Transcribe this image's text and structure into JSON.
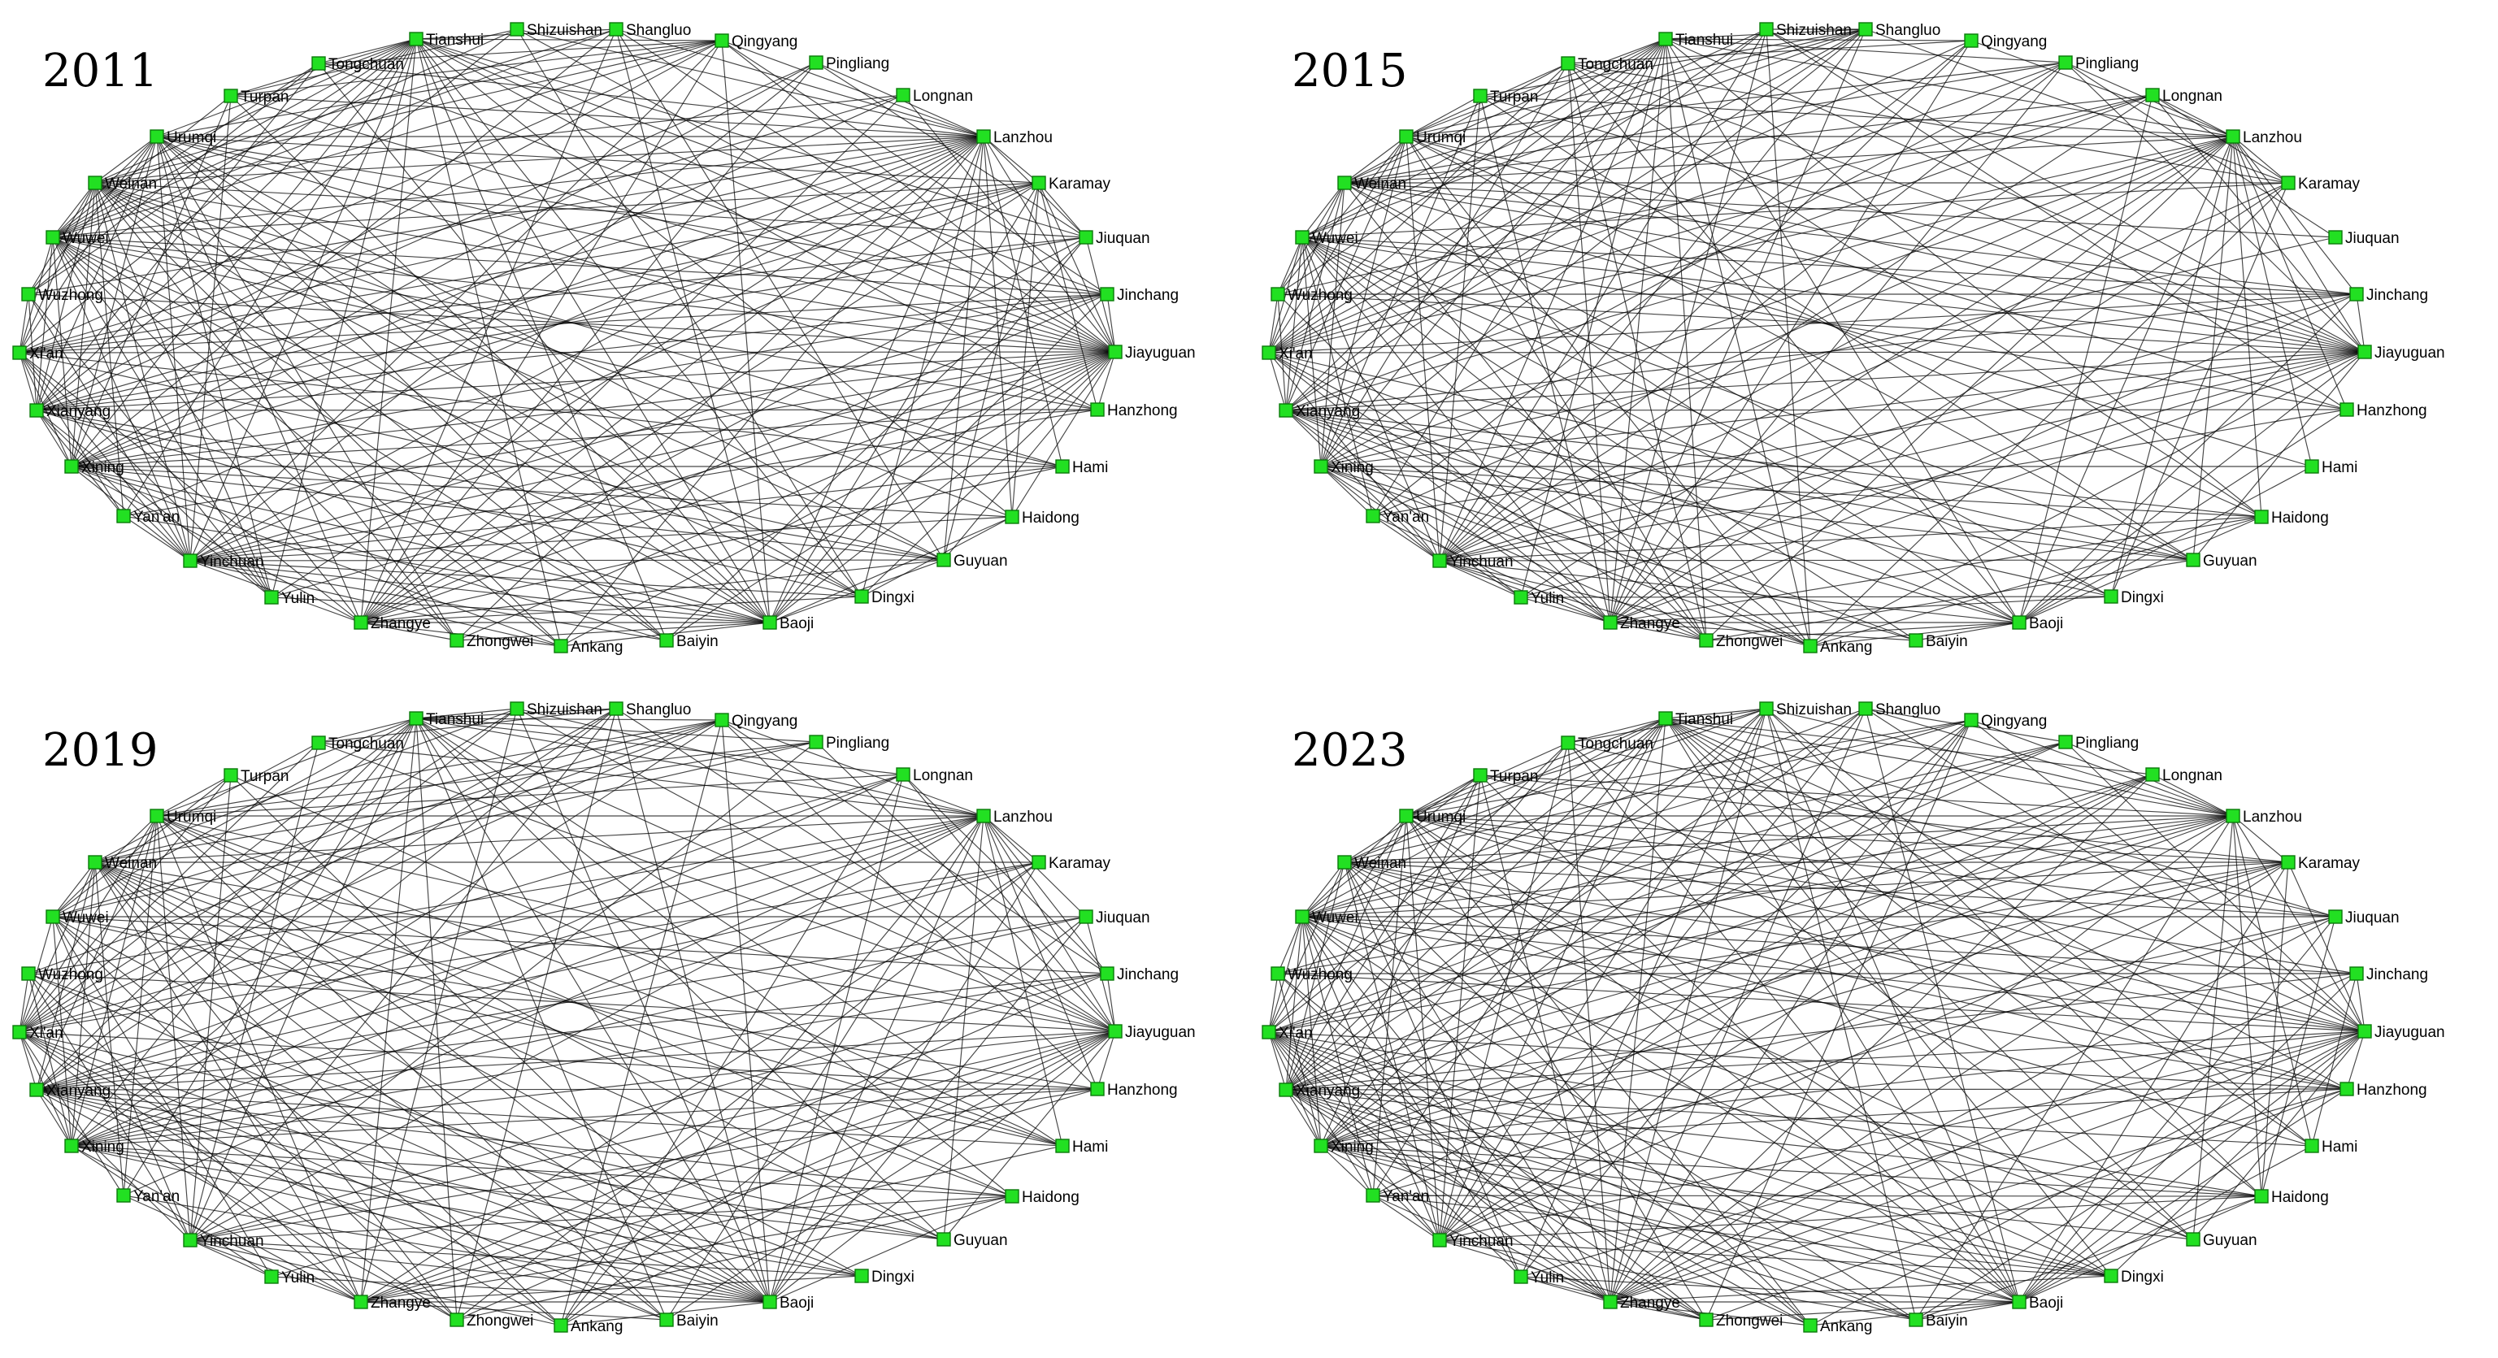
{
  "figure": {
    "panels": [
      {
        "year": "2011"
      },
      {
        "year": "2015"
      },
      {
        "year": "2019"
      },
      {
        "year": "2023"
      }
    ],
    "cities": [
      "Tianshui",
      "Shizuishan",
      "Shangluo",
      "Qingyang",
      "Pingliang",
      "Longnan",
      "Lanzhou",
      "Karamay",
      "Jiuquan",
      "Jinchang",
      "Jiayuguan",
      "Hanzhong",
      "Hami",
      "Haidong",
      "Guyuan",
      "Dingxi",
      "Baoji",
      "Baiyin",
      "Ankang",
      "Zhongwei",
      "Zhangye",
      "Yulin",
      "Yinchuan",
      "Yan'an",
      "Xining",
      "Xianyang",
      "Xi'an",
      "Wuzhong",
      "Wuwei",
      "Weinan",
      "Urumqi",
      "Turpan",
      "Tongchuan"
    ],
    "node_color": "#22e022",
    "edge_color": "#000000"
  }
}
